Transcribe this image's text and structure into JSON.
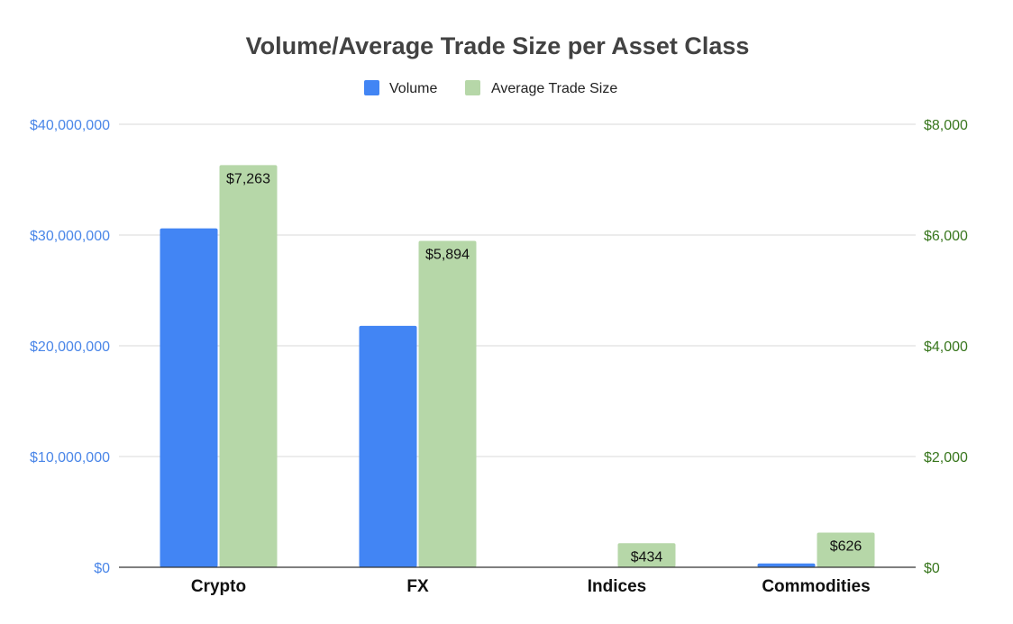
{
  "chart_data": {
    "type": "bar",
    "title": "Volume/Average Trade Size per Asset Class",
    "xlabel": "",
    "ylabel": "",
    "categories": [
      "Crypto",
      "FX",
      "Indices",
      "Commodities"
    ],
    "series": [
      {
        "name": "Volume",
        "axis": "left",
        "color": "#4285f4",
        "values": [
          30600000,
          21800000,
          0,
          350000
        ],
        "data_labels": [
          "",
          "",
          "",
          ""
        ]
      },
      {
        "name": "Average Trade Size",
        "axis": "right",
        "color": "#b6d7a8",
        "values": [
          7263,
          5894,
          434,
          626
        ],
        "data_labels": [
          "$7,263",
          "$5,894",
          "$434",
          "$626"
        ]
      }
    ],
    "ylim_left": [
      0,
      40000000
    ],
    "ylim_right": [
      0,
      8000
    ],
    "yticks_left": [
      "$0",
      "$10,000,000",
      "$20,000,000",
      "$30,000,000",
      "$40,000,000"
    ],
    "yticks_right": [
      "$0",
      "$2,000",
      "$4,000",
      "$6,000",
      "$8,000"
    ],
    "left_axis_color": "#4a86e8",
    "right_axis_color": "#38761d",
    "grid": true,
    "legend_position": "top-center"
  }
}
